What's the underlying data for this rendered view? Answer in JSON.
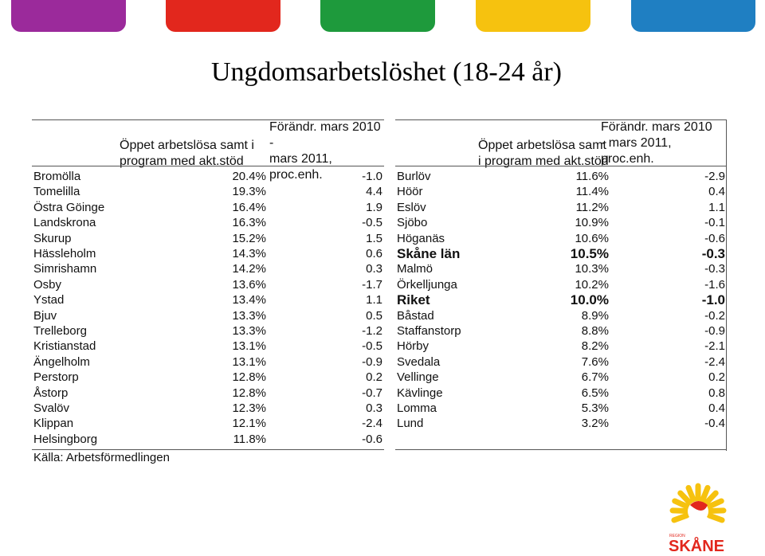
{
  "header_bar_colors": [
    "#9b2a9b",
    "#e2271d",
    "#1e9a3c",
    "#f6c20f",
    "#1f7fc2"
  ],
  "title": "Ungdomsarbetslöshet (18-24 år)",
  "left_table": {
    "col_share": "Öppet arbetslösa samt i\nprogram med akt.stöd",
    "col_change": "Förändr. mars 2010 -\nmars 2011,\nproc.enh.",
    "rows": [
      {
        "name": "Bromölla",
        "share": "20.4%",
        "change": "-1.0"
      },
      {
        "name": "Tomelilla",
        "share": "19.3%",
        "change": "4.4"
      },
      {
        "name": "Östra Göinge",
        "share": "16.4%",
        "change": "1.9"
      },
      {
        "name": "Landskrona",
        "share": "16.3%",
        "change": "-0.5"
      },
      {
        "name": "Skurup",
        "share": "15.2%",
        "change": "1.5"
      },
      {
        "name": "Hässleholm",
        "share": "14.3%",
        "change": "0.6"
      },
      {
        "name": "Simrishamn",
        "share": "14.2%",
        "change": "0.3"
      },
      {
        "name": "Osby",
        "share": "13.6%",
        "change": "-1.7"
      },
      {
        "name": "Ystad",
        "share": "13.4%",
        "change": "1.1"
      },
      {
        "name": "Bjuv",
        "share": "13.3%",
        "change": "0.5"
      },
      {
        "name": "Trelleborg",
        "share": "13.3%",
        "change": "-1.2"
      },
      {
        "name": "Kristianstad",
        "share": "13.1%",
        "change": "-0.5"
      },
      {
        "name": "Ängelholm",
        "share": "13.1%",
        "change": "-0.9"
      },
      {
        "name": "Perstorp",
        "share": "12.8%",
        "change": "0.2"
      },
      {
        "name": "Åstorp",
        "share": "12.8%",
        "change": "-0.7"
      },
      {
        "name": "Svalöv",
        "share": "12.3%",
        "change": "0.3"
      },
      {
        "name": "Klippan",
        "share": "12.1%",
        "change": "-2.4"
      },
      {
        "name": "Helsingborg",
        "share": "11.8%",
        "change": "-0.6"
      }
    ]
  },
  "right_table": {
    "col_share": "Öppet arbetslösa samt\ni program med akt.stöd",
    "col_change": "Förändr. mars 2010\n- mars 2011,\nproc.enh.",
    "rows": [
      {
        "name": "Burlöv",
        "share": "11.6%",
        "change": "-2.9",
        "bold": false
      },
      {
        "name": "Höör",
        "share": "11.4%",
        "change": "0.4",
        "bold": false
      },
      {
        "name": "Eslöv",
        "share": "11.2%",
        "change": "1.1",
        "bold": false
      },
      {
        "name": "Sjöbo",
        "share": "10.9%",
        "change": "-0.1",
        "bold": false
      },
      {
        "name": "Höganäs",
        "share": "10.6%",
        "change": "-0.6",
        "bold": false
      },
      {
        "name": "Skåne län",
        "share": "10.5%",
        "change": "-0.3",
        "bold": true
      },
      {
        "name": "Malmö",
        "share": "10.3%",
        "change": "-0.3",
        "bold": false
      },
      {
        "name": "Örkelljunga",
        "share": "10.2%",
        "change": "-1.6",
        "bold": false
      },
      {
        "name": "Riket",
        "share": "10.0%",
        "change": "-1.0",
        "bold": true
      },
      {
        "name": "Båstad",
        "share": "8.9%",
        "change": "-0.2",
        "bold": false
      },
      {
        "name": "Staffanstorp",
        "share": "8.8%",
        "change": "-0.9",
        "bold": false
      },
      {
        "name": "Hörby",
        "share": "8.2%",
        "change": "-2.1",
        "bold": false
      },
      {
        "name": "Svedala",
        "share": "7.6%",
        "change": "-2.4",
        "bold": false
      },
      {
        "name": "Vellinge",
        "share": "6.7%",
        "change": "0.2",
        "bold": false
      },
      {
        "name": "Kävlinge",
        "share": "6.5%",
        "change": "0.8",
        "bold": false
      },
      {
        "name": "Lomma",
        "share": "5.3%",
        "change": "0.4",
        "bold": false
      },
      {
        "name": "Lund",
        "share": "3.2%",
        "change": "-0.4",
        "bold": false
      }
    ]
  },
  "source": "Källa: Arbetsförmedlingen",
  "logo": {
    "region_text": "REGION",
    "name_text": "SKÅNE",
    "color": "#e2271d",
    "sun_color": "#f6c20f"
  }
}
